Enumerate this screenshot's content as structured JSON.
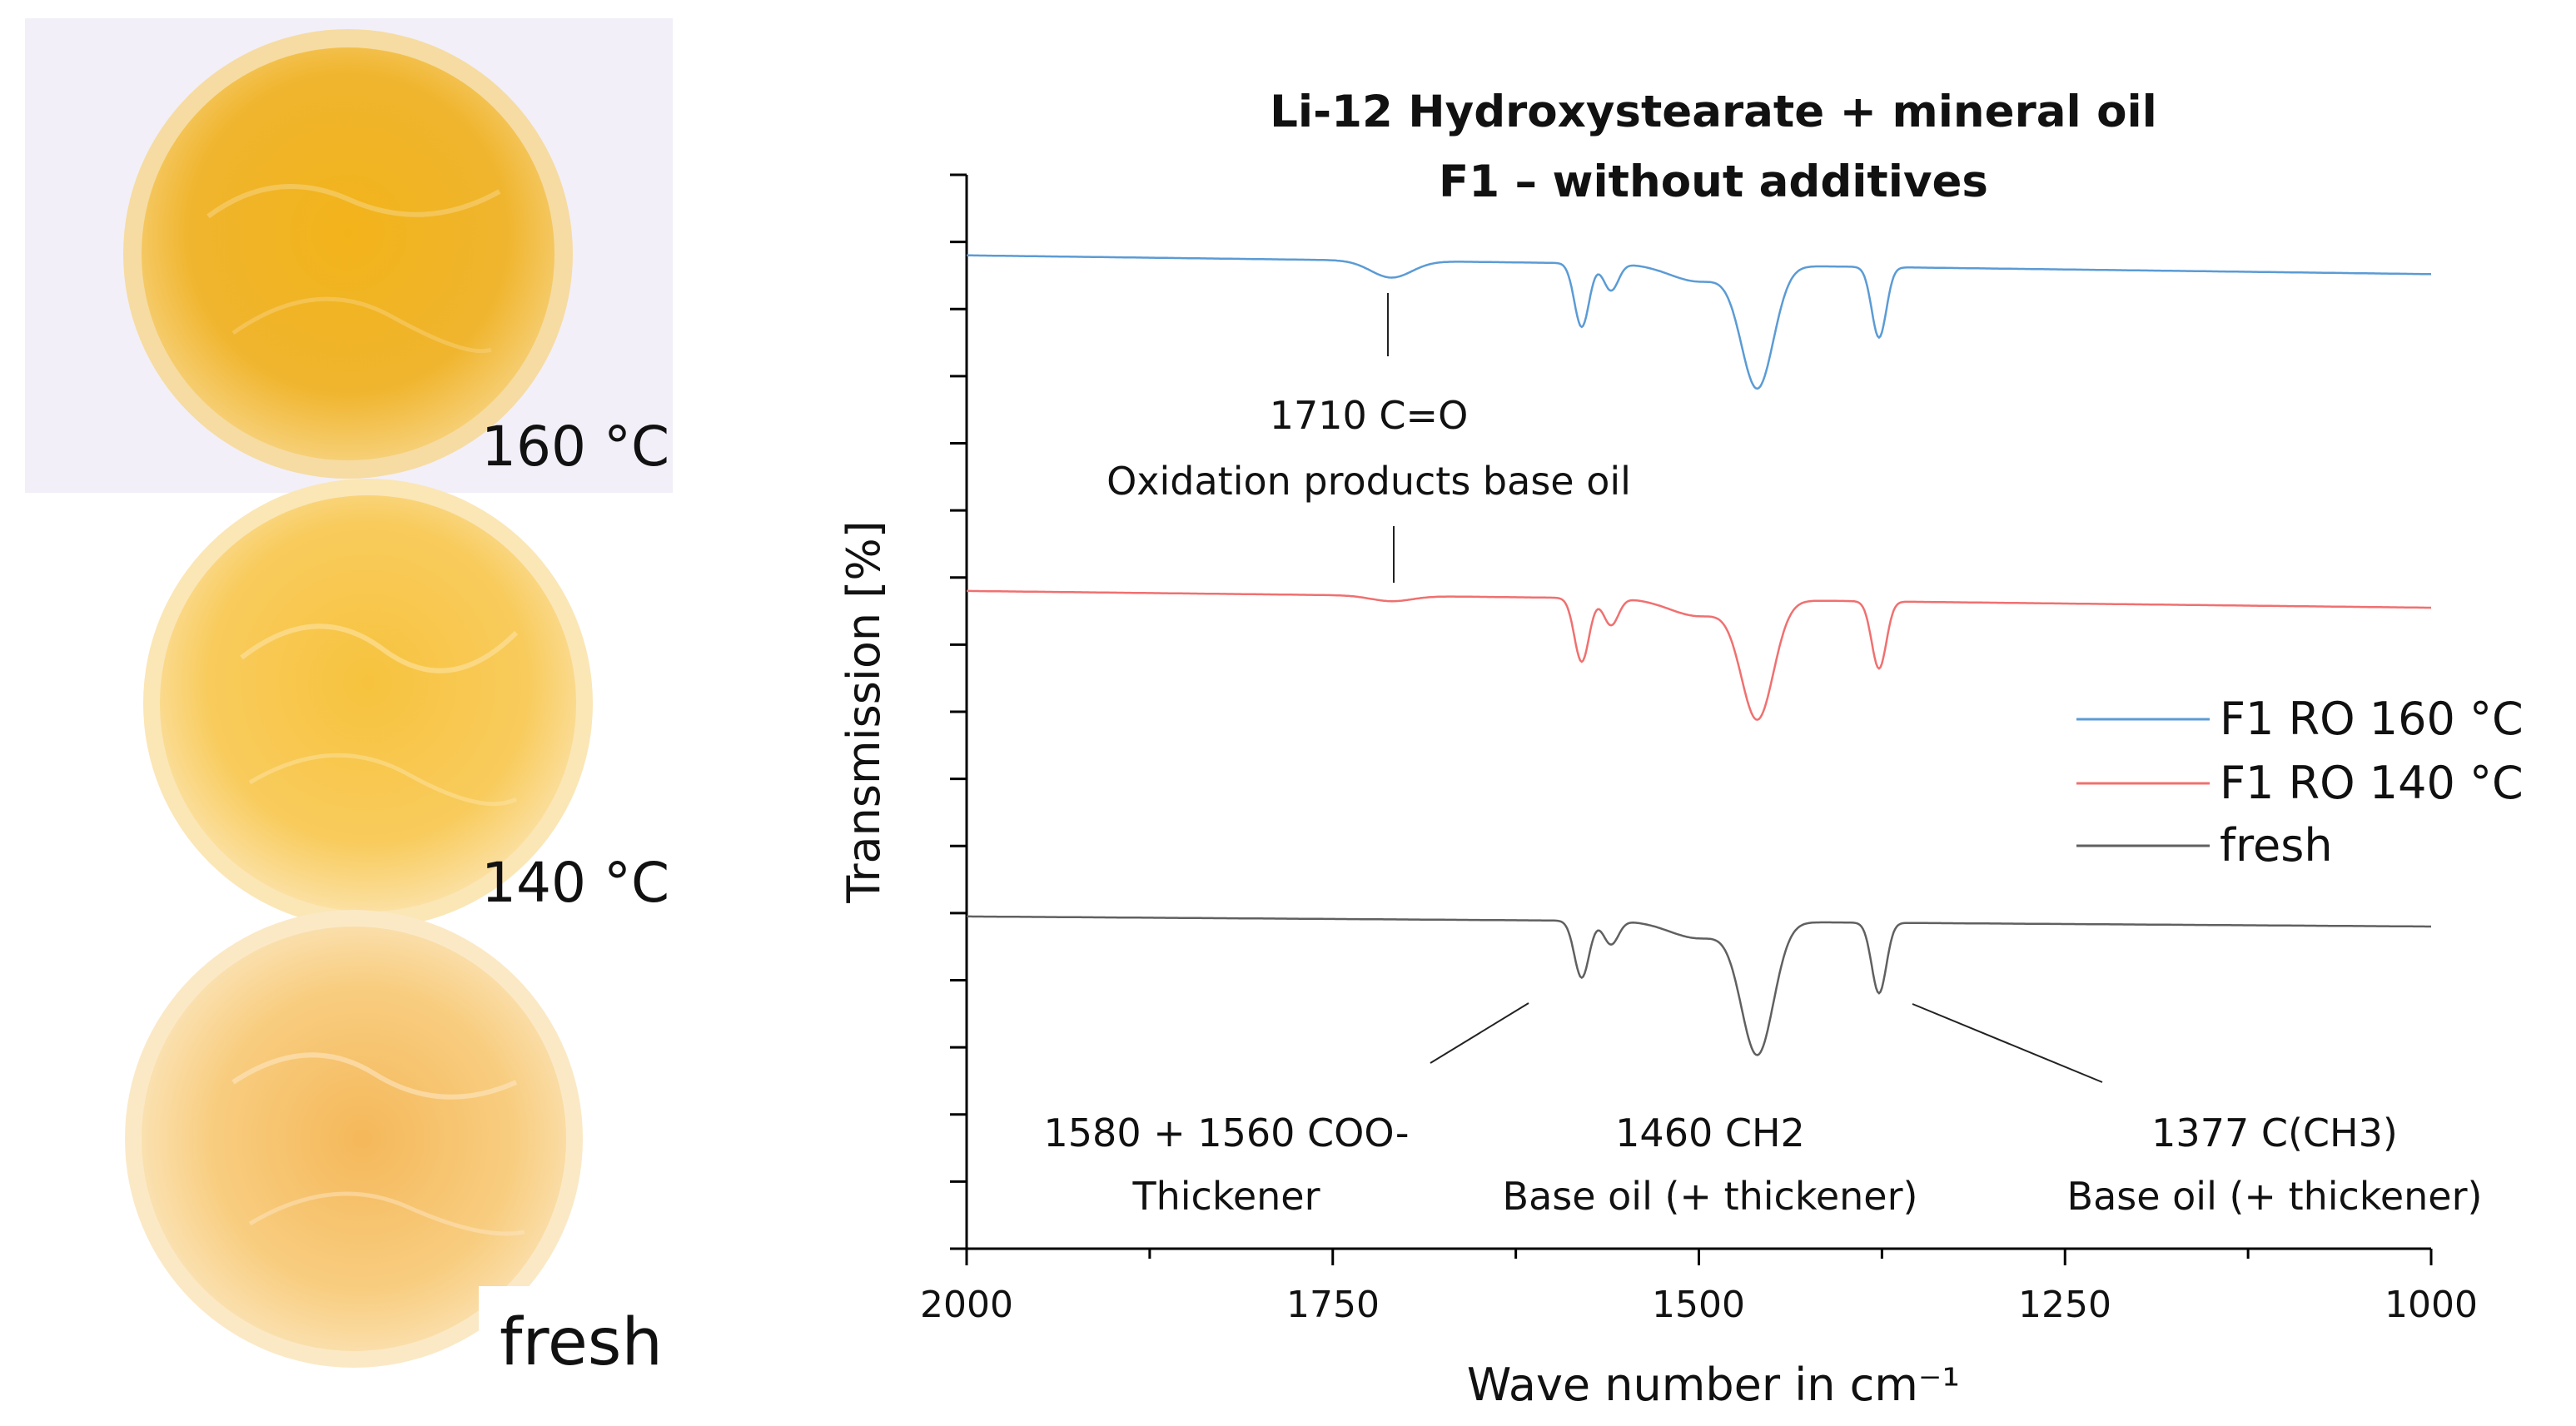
{
  "photos": {
    "labels": [
      "160 °C",
      "140 °C",
      "fresh"
    ]
  },
  "chart_data": {
    "type": "line",
    "title": [
      "Li-12 Hydroxystearate + mineral oil",
      "F1 – without additives"
    ],
    "xlabel": "Wave number in cm⁻¹",
    "ylabel": "Transmission [%]",
    "xlim": [
      2000,
      1000
    ],
    "xticks": [
      "2000",
      "1750",
      "1500",
      "1250",
      "1000"
    ],
    "ylim": [
      0,
      16
    ],
    "yticks_count": 16,
    "grid": false,
    "legend_position": "right",
    "series": [
      {
        "name": "F1 RO 160 °C",
        "color": "#5b9bd5",
        "offset": 14.8,
        "baseline_drift": -0.28,
        "bands": [
          {
            "center": 1710,
            "depth": 0.25,
            "width": 14
          },
          {
            "center": 1580,
            "depth": 0.95,
            "width": 5
          },
          {
            "center": 1560,
            "depth": 0.4,
            "width": 5
          },
          {
            "center": 1460,
            "depth": 1.8,
            "width": 11
          },
          {
            "center": 1377,
            "depth": 1.05,
            "width": 5
          }
        ]
      },
      {
        "name": "F1 RO 140 °C",
        "color": "#f07070",
        "offset": 9.8,
        "baseline_drift": -0.25,
        "bands": [
          {
            "center": 1710,
            "depth": 0.08,
            "width": 14
          },
          {
            "center": 1580,
            "depth": 0.95,
            "width": 5
          },
          {
            "center": 1560,
            "depth": 0.4,
            "width": 5
          },
          {
            "center": 1460,
            "depth": 1.75,
            "width": 11
          },
          {
            "center": 1377,
            "depth": 1.0,
            "width": 5
          }
        ]
      },
      {
        "name": "fresh",
        "color": "#606060",
        "offset": 4.95,
        "baseline_drift": -0.15,
        "bands": [
          {
            "center": 1580,
            "depth": 0.85,
            "width": 5
          },
          {
            "center": 1560,
            "depth": 0.35,
            "width": 5
          },
          {
            "center": 1460,
            "depth": 1.95,
            "width": 11
          },
          {
            "center": 1377,
            "depth": 1.05,
            "width": 5
          }
        ]
      }
    ],
    "annotations": [
      {
        "text": [
          "1710 C=O",
          "Oxidation products base oil"
        ]
      },
      {
        "text": [
          "1580 + 1560 COO-",
          "Thickener"
        ]
      },
      {
        "text": [
          "1460 CH2",
          "Base oil (+ thickener)"
        ]
      },
      {
        "text": [
          "1377 C(CH3)",
          "Base oil (+ thickener)"
        ]
      }
    ]
  }
}
